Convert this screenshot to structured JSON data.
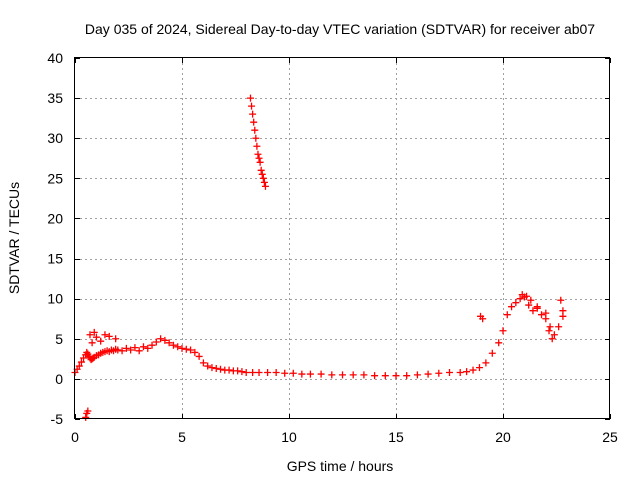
{
  "chart_data": {
    "type": "scatter",
    "title": "Day 035 of 2024, Sidereal Day-to-day VTEC variation (SDTVAR) for receiver ab07",
    "xlabel": "GPS time / hours",
    "ylabel": "SDTVAR / TECUs",
    "xlim": [
      0,
      25
    ],
    "ylim": [
      -5,
      40
    ],
    "xticks": [
      0,
      5,
      10,
      15,
      20,
      25
    ],
    "yticks": [
      -5,
      0,
      5,
      10,
      15,
      20,
      25,
      30,
      35,
      40
    ],
    "grid": true,
    "marker": "+",
    "color": "#ff0000",
    "series": [
      {
        "name": "SDTVAR",
        "x": [
          0.0,
          0.1,
          0.2,
          0.3,
          0.4,
          0.5,
          0.55,
          0.6,
          0.65,
          0.7,
          0.75,
          0.8,
          0.85,
          0.9,
          1.0,
          1.1,
          1.2,
          1.3,
          1.4,
          1.5,
          1.6,
          1.7,
          1.8,
          1.9,
          2.0,
          2.2,
          2.4,
          2.6,
          2.8,
          3.0,
          3.2,
          3.4,
          3.6,
          3.8,
          4.0,
          4.2,
          4.4,
          4.6,
          4.8,
          5.0,
          5.2,
          5.4,
          5.6,
          5.8,
          6.0,
          6.2,
          6.4,
          6.6,
          6.8,
          7.0,
          7.2,
          7.4,
          7.6,
          7.8,
          8.0,
          8.3,
          8.6,
          9.0,
          9.4,
          9.8,
          10.2,
          10.6,
          11.0,
          11.5,
          12.0,
          12.5,
          13.0,
          13.5,
          14.0,
          14.5,
          15.0,
          15.5,
          16.0,
          16.5,
          17.0,
          17.5,
          18.0,
          18.3,
          18.6,
          18.9,
          19.2,
          19.5,
          19.8,
          20.0,
          20.2,
          20.4,
          20.6,
          20.8,
          21.0,
          21.2,
          21.4,
          21.6,
          21.8,
          22.0,
          22.2,
          22.4,
          22.6,
          22.8,
          0.7,
          0.8,
          0.9,
          1.0,
          1.2,
          1.4,
          1.6,
          1.9,
          0.5,
          0.55,
          0.6,
          8.2,
          8.25,
          8.3,
          8.35,
          8.4,
          8.45,
          8.5,
          8.55,
          8.6,
          8.65,
          8.7,
          8.75,
          8.8,
          8.85,
          8.9,
          18.95,
          19.05,
          20.9,
          21.1,
          21.3,
          21.6,
          22.0,
          22.15,
          22.3,
          22.7,
          22.8
        ],
        "y": [
          0.8,
          1.2,
          1.6,
          2.1,
          2.6,
          3.0,
          3.3,
          3.1,
          2.8,
          2.6,
          2.4,
          2.5,
          2.6,
          2.7,
          2.9,
          3.0,
          3.2,
          3.3,
          3.4,
          3.5,
          3.4,
          3.6,
          3.5,
          3.7,
          3.6,
          3.5,
          3.8,
          3.6,
          3.9,
          3.5,
          4.0,
          3.8,
          4.2,
          4.6,
          5.0,
          4.8,
          4.5,
          4.2,
          4.0,
          3.8,
          3.7,
          3.6,
          3.3,
          2.8,
          2.0,
          1.6,
          1.4,
          1.3,
          1.2,
          1.1,
          1.1,
          1.0,
          1.0,
          0.9,
          0.8,
          0.8,
          0.8,
          0.8,
          0.8,
          0.7,
          0.7,
          0.6,
          0.6,
          0.6,
          0.5,
          0.5,
          0.5,
          0.5,
          0.4,
          0.4,
          0.4,
          0.4,
          0.5,
          0.6,
          0.7,
          0.8,
          0.8,
          0.9,
          1.1,
          1.4,
          2.0,
          3.2,
          4.5,
          6.0,
          8.0,
          9.0,
          9.5,
          10.0,
          10.2,
          9.2,
          8.5,
          8.8,
          8.0,
          7.5,
          6.5,
          5.5,
          6.5,
          8.5,
          5.5,
          4.5,
          5.8,
          5.2,
          4.7,
          5.5,
          5.3,
          5.0,
          -4.8,
          -4.3,
          -4.0,
          35.0,
          34.0,
          33.0,
          32.0,
          31.0,
          30.0,
          29.0,
          28.0,
          27.5,
          27.0,
          26.0,
          25.5,
          25.0,
          24.5,
          24.0,
          7.8,
          7.5,
          10.5,
          10.3,
          9.8,
          9.0,
          8.2,
          6.0,
          5.0,
          9.8,
          7.8
        ]
      }
    ]
  }
}
